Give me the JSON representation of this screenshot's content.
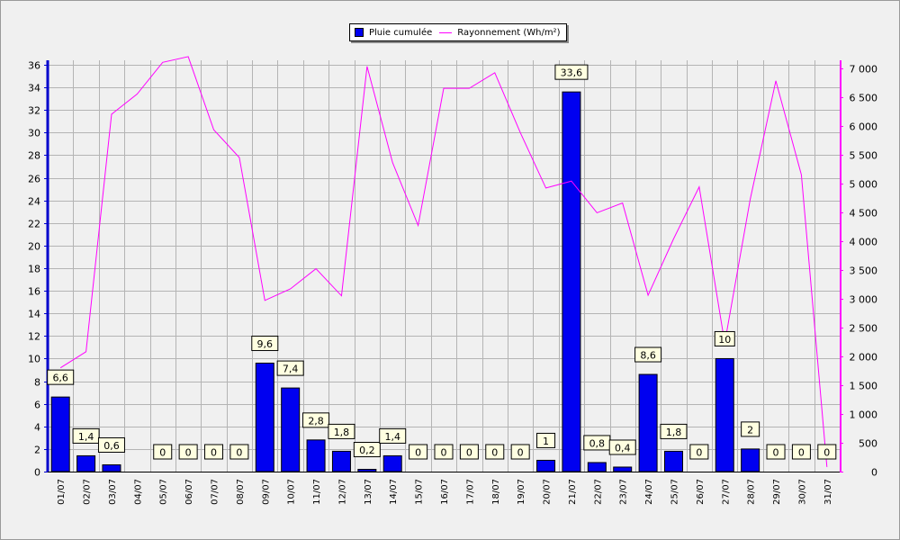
{
  "legend": {
    "bar_label": "Pluie cumulée",
    "line_label": "Rayonnement (Wh/m²)"
  },
  "colors": {
    "bar": "#0000f0",
    "line": "#ff00ff",
    "axis_left": "#0000cc",
    "axis_right": "#ff00ff",
    "grid": "#b4b4b4",
    "background": "#f0f0f0",
    "data_label_bg": "#ffffe1"
  },
  "chart_data": {
    "type": "bar",
    "categories": [
      "01/07",
      "02/07",
      "03/07",
      "04/07",
      "05/07",
      "06/07",
      "07/07",
      "08/07",
      "09/07",
      "10/07",
      "11/07",
      "12/07",
      "13/07",
      "14/07",
      "15/07",
      "16/07",
      "17/07",
      "18/07",
      "19/07",
      "20/07",
      "21/07",
      "22/07",
      "23/07",
      "24/07",
      "25/07",
      "26/07",
      "27/07",
      "28/07",
      "29/07",
      "30/07",
      "31/07"
    ],
    "series": [
      {
        "name": "Pluie cumulée",
        "type": "bar",
        "axis": "left",
        "values": [
          6.6,
          1.4,
          0.6,
          null,
          0,
          0,
          0,
          0,
          9.6,
          7.4,
          2.8,
          1.8,
          0.2,
          1.4,
          0,
          0,
          0,
          0,
          0,
          1,
          33.6,
          0.8,
          0.4,
          8.6,
          1.8,
          0,
          10,
          2,
          0,
          0,
          0
        ],
        "labels": [
          "6,6",
          "1,4",
          "0,6",
          "",
          "0",
          "0",
          "0",
          "0",
          "9,6",
          "7,4",
          "2,8",
          "1,8",
          "0,2",
          "1,4",
          "0",
          "0",
          "0",
          "0",
          "0",
          "1",
          "33,6",
          "0,8",
          "0,4",
          "8,6",
          "1,8",
          "0",
          "10",
          "2",
          "0",
          "0",
          "0"
        ]
      },
      {
        "name": "Rayonnement (Wh/m²)",
        "type": "line",
        "axis": "right",
        "values": [
          1800,
          2080,
          6200,
          6550,
          7100,
          7200,
          5930,
          5450,
          2970,
          3170,
          3520,
          3050,
          7030,
          5360,
          4270,
          6650,
          6650,
          6920,
          5880,
          4920,
          5040,
          4490,
          4660,
          3060,
          4040,
          4940,
          2230,
          4730,
          6780,
          5150,
          80
        ]
      }
    ],
    "y_left": {
      "min": 0,
      "max": 36.4,
      "ticks": [
        "0",
        "2",
        "4",
        "6",
        "8",
        "10",
        "12",
        "14",
        "16",
        "18",
        "20",
        "22",
        "24",
        "26",
        "28",
        "30",
        "32",
        "34",
        "36"
      ]
    },
    "y_right": {
      "min": 0,
      "max": 7136,
      "ticks": [
        "0",
        "500",
        "1 000",
        "1 500",
        "2 000",
        "2 500",
        "3 000",
        "3 500",
        "4 000",
        "4 500",
        "5 000",
        "5 500",
        "6 000",
        "6 500",
        "7 000"
      ]
    },
    "grid": true,
    "legend_position": "top-center"
  }
}
